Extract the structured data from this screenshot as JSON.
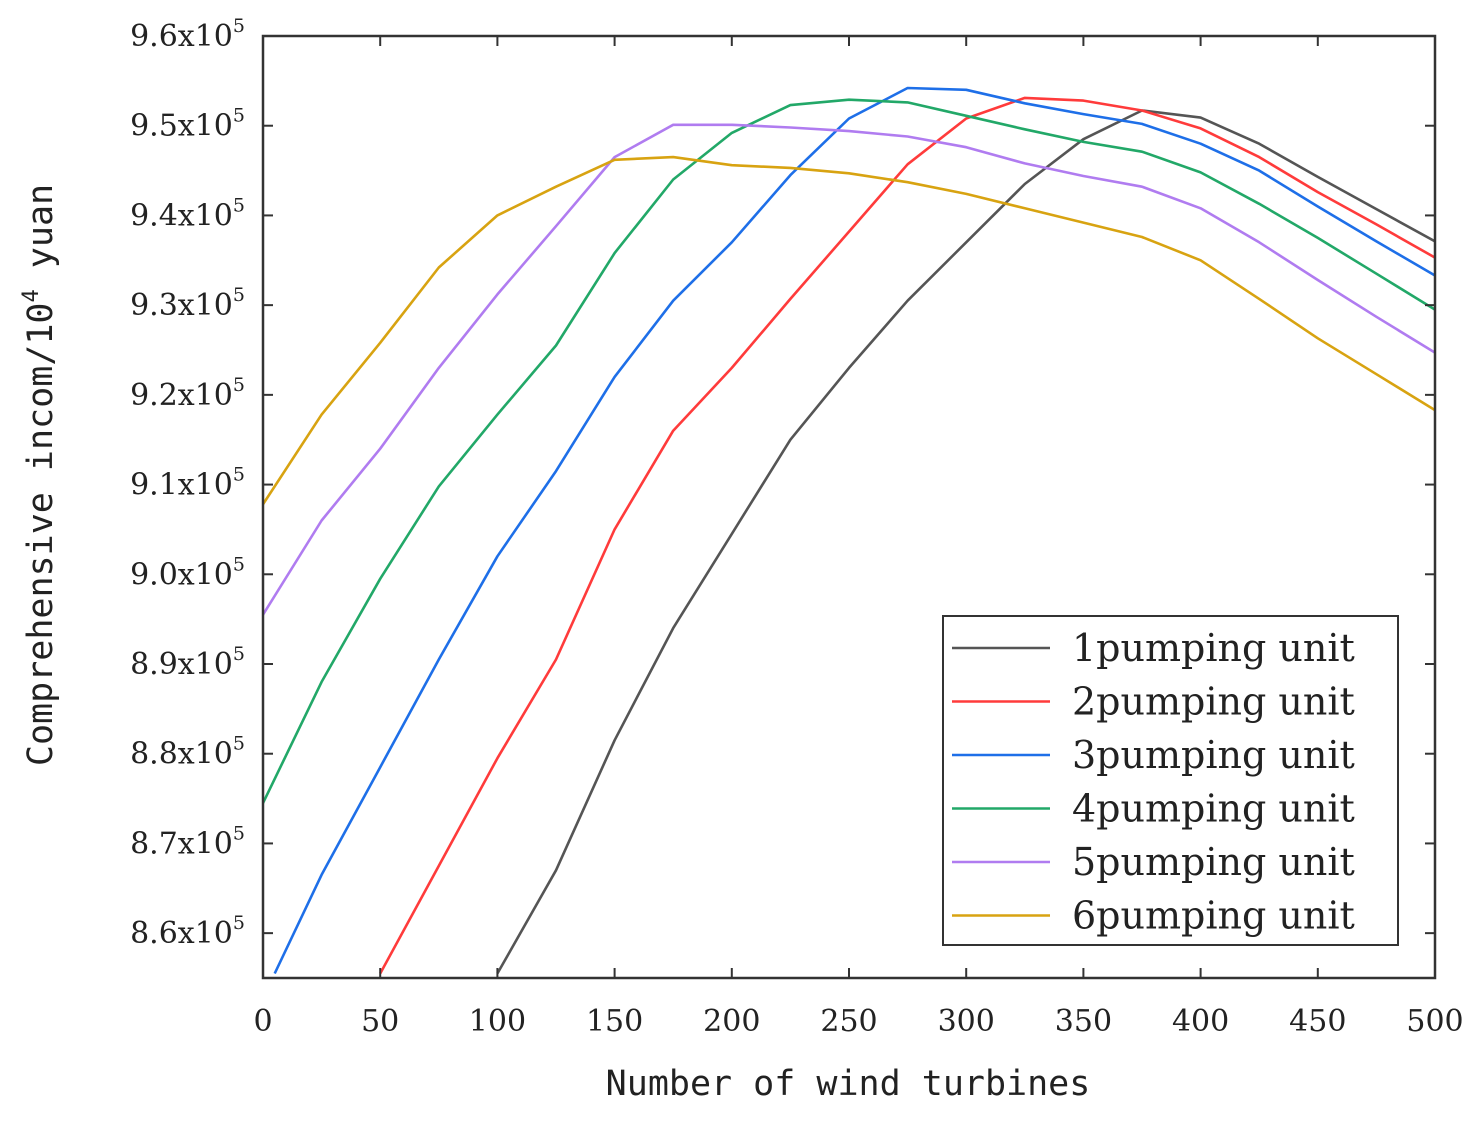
{
  "chart_data": {
    "type": "line",
    "title": "",
    "xlabel": "Number of wind turbines",
    "ylabel": "Comprehensive incom/10",
    "ylabel_exponent": "4",
    "ylabel_unit": " yuan",
    "xlim": [
      0,
      500
    ],
    "ylim": [
      855000,
      960000
    ],
    "xticks": [
      "0",
      "50",
      "100",
      "150",
      "200",
      "250",
      "300",
      "350",
      "400",
      "450",
      "500"
    ],
    "xtick_values": [
      0,
      50,
      100,
      150,
      200,
      250,
      300,
      350,
      400,
      450,
      500
    ],
    "yticks": [
      {
        "value": 860000,
        "mantissa": "8.6x10",
        "exp": "5"
      },
      {
        "value": 870000,
        "mantissa": "8.7x10",
        "exp": "5"
      },
      {
        "value": 880000,
        "mantissa": "8.8x10",
        "exp": "5"
      },
      {
        "value": 890000,
        "mantissa": "8.9x10",
        "exp": "5"
      },
      {
        "value": 900000,
        "mantissa": "9.0x10",
        "exp": "5"
      },
      {
        "value": 910000,
        "mantissa": "9.1x10",
        "exp": "5"
      },
      {
        "value": 920000,
        "mantissa": "9.2x10",
        "exp": "5"
      },
      {
        "value": 930000,
        "mantissa": "9.3x10",
        "exp": "5"
      },
      {
        "value": 940000,
        "mantissa": "9.4x10",
        "exp": "5"
      },
      {
        "value": 950000,
        "mantissa": "9.5x10",
        "exp": "5"
      },
      {
        "value": 960000,
        "mantissa": "9.6x10",
        "exp": "5"
      }
    ],
    "legend_position": "bottom-right",
    "grid": false,
    "series": [
      {
        "name": "1pumping unit",
        "color": "#555555",
        "x": [
          100,
          125,
          150,
          175,
          200,
          225,
          250,
          275,
          300,
          325,
          350,
          375,
          400,
          425,
          450,
          475,
          500
        ],
        "y": [
          855500,
          867000,
          881500,
          894000,
          904500,
          915000,
          923000,
          930500,
          937000,
          943500,
          948500,
          951700,
          950900,
          948000,
          944300,
          940700,
          937100
        ]
      },
      {
        "name": "2pumping unit",
        "color": "#ff3b3b",
        "x": [
          50,
          75,
          100,
          125,
          150,
          175,
          200,
          225,
          250,
          275,
          300,
          325,
          350,
          375,
          400,
          425,
          450,
          475,
          500
        ],
        "y": [
          855500,
          867500,
          879500,
          890500,
          905000,
          916000,
          923000,
          930700,
          938200,
          945700,
          950800,
          953100,
          952800,
          951700,
          949700,
          946500,
          942600,
          939000,
          935300
        ]
      },
      {
        "name": "3pumping unit",
        "color": "#1e6fe8",
        "x": [
          5,
          25,
          50,
          75,
          100,
          125,
          150,
          175,
          200,
          225,
          250,
          275,
          300,
          325,
          350,
          375,
          400,
          425,
          450,
          475,
          500
        ],
        "y": [
          855500,
          866500,
          878500,
          890500,
          902000,
          911500,
          922000,
          930500,
          937000,
          944500,
          950800,
          954200,
          954000,
          952500,
          951300,
          950200,
          948000,
          945000,
          941000,
          937100,
          933300
        ]
      },
      {
        "name": "4pumping unit",
        "color": "#22a868",
        "x": [
          0,
          25,
          50,
          75,
          100,
          125,
          150,
          175,
          200,
          225,
          250,
          275,
          300,
          325,
          350,
          375,
          400,
          425,
          450,
          475,
          500
        ],
        "y": [
          874500,
          888000,
          899500,
          909800,
          917800,
          925500,
          935800,
          944000,
          949200,
          952300,
          952900,
          952600,
          951100,
          949600,
          948200,
          947100,
          944800,
          941300,
          937500,
          933500,
          929500
        ]
      },
      {
        "name": "5pumping unit",
        "color": "#b07cf0",
        "x": [
          0,
          25,
          50,
          75,
          100,
          125,
          150,
          175,
          200,
          225,
          250,
          275,
          300,
          325,
          350,
          375,
          400,
          425,
          450,
          475,
          500
        ],
        "y": [
          895500,
          906000,
          914000,
          923000,
          931200,
          938800,
          946500,
          950100,
          950100,
          949800,
          949400,
          948800,
          947600,
          945800,
          944400,
          943200,
          940800,
          937000,
          932800,
          928700,
          924700
        ]
      },
      {
        "name": "6pumping unit",
        "color": "#d8a311",
        "x": [
          0,
          25,
          50,
          75,
          100,
          125,
          150,
          175,
          200,
          225,
          250,
          275,
          300,
          325,
          350,
          375,
          400,
          425,
          450,
          475,
          500
        ],
        "y": [
          907800,
          917800,
          925800,
          934200,
          940000,
          943200,
          946200,
          946500,
          945600,
          945300,
          944700,
          943700,
          942400,
          940800,
          939200,
          937600,
          935000,
          930700,
          926300,
          922300,
          918300
        ]
      }
    ]
  }
}
